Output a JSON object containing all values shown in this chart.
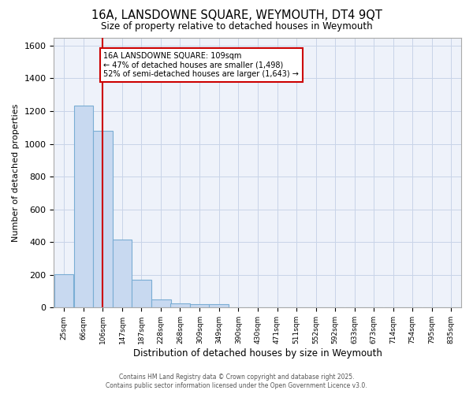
{
  "title": "16A, LANSDOWNE SQUARE, WEYMOUTH, DT4 9QT",
  "subtitle": "Size of property relative to detached houses in Weymouth",
  "xlabel": "Distribution of detached houses by size in Weymouth",
  "ylabel": "Number of detached properties",
  "bar_categories": [
    "25sqm",
    "66sqm",
    "106sqm",
    "147sqm",
    "187sqm",
    "228sqm",
    "268sqm",
    "309sqm",
    "349sqm",
    "390sqm",
    "430sqm",
    "471sqm",
    "511sqm",
    "552sqm",
    "592sqm",
    "633sqm",
    "673sqm",
    "714sqm",
    "754sqm",
    "795sqm",
    "835sqm"
  ],
  "bar_values": [
    205,
    1235,
    1080,
    415,
    170,
    48,
    25,
    20,
    20,
    0,
    0,
    0,
    0,
    0,
    0,
    0,
    0,
    0,
    0,
    0,
    0
  ],
  "bar_color": "#c8d9f0",
  "bar_edge_color": "#7aadd4",
  "grid_color": "#c8d4e8",
  "background_color": "#ffffff",
  "plot_bg_color": "#eef2fa",
  "vline_color": "#cc0000",
  "annotation_text": "16A LANSDOWNE SQUARE: 109sqm\n← 47% of detached houses are smaller (1,498)\n52% of semi-detached houses are larger (1,643) →",
  "annotation_box_color": "#ffffff",
  "annotation_box_edge": "#cc0000",
  "ylim": [
    0,
    1650
  ],
  "yticks": [
    0,
    200,
    400,
    600,
    800,
    1000,
    1200,
    1400,
    1600
  ],
  "footer_line1": "Contains HM Land Registry data © Crown copyright and database right 2025.",
  "footer_line2": "Contains public sector information licensed under the Open Government Licence v3.0."
}
